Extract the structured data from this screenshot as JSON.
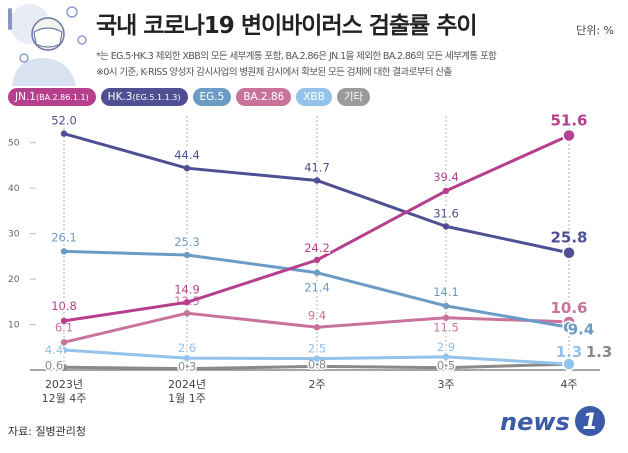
{
  "header": {
    "title": "국내 코로나19 변이바이러스 검출률 추이",
    "unit": "단위: %",
    "note1": "*는 EG.5·HK.3 제외한 XBB의 모든 세부계통 포함, BA.2.86은 JN.1을 제외한 BA.2.86의 모든 세부계통 포함",
    "note2": "※0시 기준, K-RISS 양성자 감시사업의 병원체 감시에서 확보된 모든 검체에 대한 결과로부터 산출"
  },
  "legend": [
    {
      "main": "JN.1",
      "sub": "(BA.2.86.1.1)",
      "color": "#b63f8e"
    },
    {
      "main": "HK.3",
      "sub": "(EG.5.1.1.3)",
      "color": "#4f4f94"
    },
    {
      "main": "EG.5",
      "sub": "",
      "color": "#6c9bc6"
    },
    {
      "main": "BA.2.86",
      "sub": "",
      "color": "#c9739b"
    },
    {
      "main": "XBB",
      "sub": "",
      "color": "#93c2ea"
    },
    {
      "main": "기타",
      "sub": "",
      "color": "#9b9b9b"
    }
  ],
  "chart_data": {
    "type": "line",
    "categories": [
      "2023년 12월 4주",
      "2024년 1월 1주",
      "2주",
      "3주",
      "4주"
    ],
    "category_lines": [
      [
        "2023년",
        "12월 4주"
      ],
      [
        "2024년",
        "1월 1주"
      ],
      [
        "2주"
      ],
      [
        "3주"
      ],
      [
        "4주"
      ]
    ],
    "ylim": [
      0,
      55
    ],
    "yticks": [
      10,
      20,
      30,
      40,
      50
    ],
    "series": [
      {
        "name": "JN.1",
        "color": "#b63f8e",
        "values": [
          10.8,
          14.9,
          24.2,
          39.4,
          51.6
        ],
        "labels": [
          "10.8",
          "14.9",
          "24.2",
          "39.4",
          "51.6"
        ]
      },
      {
        "name": "HK.3",
        "color": "#4f4f94",
        "values": [
          52.0,
          44.4,
          41.7,
          31.6,
          25.8
        ],
        "labels": [
          "52.0",
          "44.4",
          "41.7",
          "31.6",
          "25.8"
        ]
      },
      {
        "name": "EG.5",
        "color": "#6c9bc6",
        "values": [
          26.1,
          25.3,
          21.4,
          14.1,
          9.4
        ],
        "labels": [
          "26.1",
          "25.3",
          "21.4",
          "14.1",
          "9.4"
        ]
      },
      {
        "name": "BA.2.86",
        "color": "#c9739b",
        "values": [
          6.1,
          12.5,
          9.4,
          11.5,
          10.6
        ],
        "labels": [
          "6.1",
          "12.5",
          "9.4",
          "11.5",
          "10.6"
        ]
      },
      {
        "name": "XBB",
        "color": "#93c2ea",
        "values": [
          4.4,
          2.6,
          2.5,
          2.9,
          1.3
        ],
        "labels": [
          "4.4",
          "2.6",
          "2.5",
          "2.9",
          "1.3"
        ]
      },
      {
        "name": "기타",
        "color": "#8a8a8a",
        "values": [
          0.6,
          0.3,
          0.8,
          0.5,
          1.3
        ],
        "labels": [
          "0.6",
          "0.3",
          "0.8",
          "0.5",
          "1.3"
        ]
      }
    ]
  },
  "footer": {
    "source": "자료: 질병관리청",
    "logo_text": "news",
    "logo_digit": "1"
  }
}
